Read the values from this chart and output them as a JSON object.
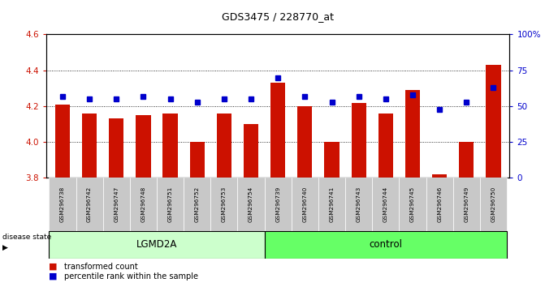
{
  "title": "GDS3475 / 228770_at",
  "samples": [
    "GSM296738",
    "GSM296742",
    "GSM296747",
    "GSM296748",
    "GSM296751",
    "GSM296752",
    "GSM296753",
    "GSM296754",
    "GSM296739",
    "GSM296740",
    "GSM296741",
    "GSM296743",
    "GSM296744",
    "GSM296745",
    "GSM296746",
    "GSM296749",
    "GSM296750"
  ],
  "red_values": [
    4.21,
    4.16,
    4.13,
    4.15,
    4.16,
    4.0,
    4.16,
    4.1,
    4.33,
    4.2,
    4.0,
    4.22,
    4.16,
    4.29,
    3.82,
    4.0,
    4.43
  ],
  "blue_values": [
    57,
    55,
    55,
    57,
    55,
    53,
    55,
    55,
    70,
    57,
    53,
    57,
    55,
    58,
    48,
    53,
    63
  ],
  "baseline": 3.8,
  "ylim_left": [
    3.8,
    4.6
  ],
  "ylim_right": [
    0,
    100
  ],
  "yticks_left": [
    3.8,
    4.0,
    4.2,
    4.4,
    4.6
  ],
  "yticks_right": [
    0,
    25,
    50,
    75,
    100
  ],
  "ytick_labels_right": [
    "0",
    "25",
    "50",
    "75",
    "100%"
  ],
  "grid_values": [
    4.0,
    4.2,
    4.4
  ],
  "groups": {
    "LGMD2A": [
      0,
      1,
      2,
      3,
      4,
      5,
      6,
      7
    ],
    "control": [
      8,
      9,
      10,
      11,
      12,
      13,
      14,
      15,
      16
    ]
  },
  "bar_color": "#CC1100",
  "dot_color": "#0000CC",
  "lgmd2a_color": "#CCFFCC",
  "control_color": "#66FF66",
  "bar_width": 0.55,
  "disease_state_label": "disease state",
  "xlabel_lgmd2a": "LGMD2A",
  "xlabel_control": "control",
  "legend_items": [
    "transformed count",
    "percentile rank within the sample"
  ],
  "legend_colors": [
    "#CC1100",
    "#0000CC"
  ],
  "background_color": "#FFFFFF",
  "plot_bg_color": "#FFFFFF",
  "tick_label_color": "#CCCCCC"
}
